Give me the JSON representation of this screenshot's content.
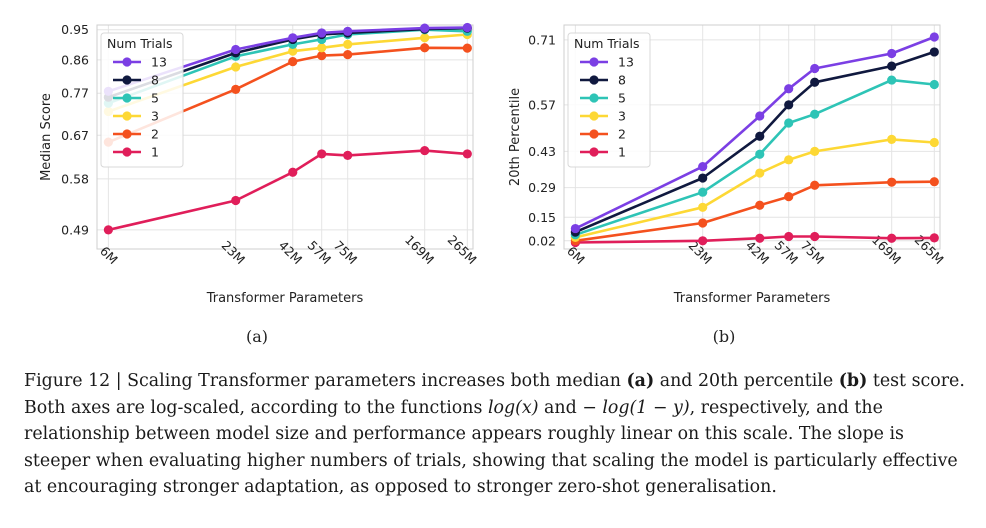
{
  "chart_data": [
    {
      "type": "line",
      "panel_label": "(a)",
      "xlabel": "Transformer Parameters",
      "ylabel": "Median Score",
      "x_scale": "log",
      "y_scale": "log",
      "x": [
        6,
        23,
        42,
        57,
        75,
        169,
        265
      ],
      "x_tick_labels": [
        "6M",
        "23M",
        "42M",
        "57M",
        "75M",
        "169M",
        "265M"
      ],
      "y_ticks": [
        0.49,
        0.58,
        0.67,
        0.77,
        0.86,
        0.95
      ],
      "y_tick_labels": [
        "0.49",
        "0.58",
        "0.67",
        "0.77",
        "0.86",
        "0.95"
      ],
      "ylim": [
        0.46,
        0.965
      ],
      "grid": true,
      "legend": {
        "title": "Num Trials",
        "position": "top-left"
      },
      "series": [
        {
          "name": "13",
          "color": "#7b3fe4",
          "values": [
            0.775,
            0.89,
            0.925,
            0.94,
            0.945,
            0.955,
            0.957
          ]
        },
        {
          "name": "8",
          "color": "#10193f",
          "values": [
            0.76,
            0.88,
            0.92,
            0.935,
            0.94,
            0.952,
            0.955
          ]
        },
        {
          "name": "5",
          "color": "#2ec4b6",
          "values": [
            0.745,
            0.87,
            0.905,
            0.92,
            0.935,
            0.95,
            0.945
          ]
        },
        {
          "name": "3",
          "color": "#fdd835",
          "values": [
            0.725,
            0.84,
            0.885,
            0.895,
            0.905,
            0.925,
            0.935
          ]
        },
        {
          "name": "2",
          "color": "#f4511e",
          "values": [
            0.655,
            0.78,
            0.855,
            0.872,
            0.875,
            0.895,
            0.894
          ]
        },
        {
          "name": "1",
          "color": "#e01e5a",
          "values": [
            0.49,
            0.54,
            0.593,
            0.63,
            0.627,
            0.637,
            0.63
          ]
        }
      ]
    },
    {
      "type": "line",
      "panel_label": "(b)",
      "xlabel": "Transformer Parameters",
      "ylabel": "20th Percentile",
      "x_scale": "log",
      "y_scale": "reciprocal",
      "x": [
        6,
        23,
        42,
        57,
        75,
        169,
        265
      ],
      "x_tick_labels": [
        "6M",
        "23M",
        "42M",
        "57M",
        "75M",
        "169M",
        "265M"
      ],
      "y_ticks": [
        0.02,
        0.15,
        0.29,
        0.43,
        0.57,
        0.71
      ],
      "y_tick_labels": [
        "0.02",
        "0.15",
        "0.29",
        "0.43",
        "0.57",
        "0.71"
      ],
      "ylim": [
        -0.03,
        0.735
      ],
      "grid": true,
      "legend": {
        "title": "Num Trials",
        "position": "top-left"
      },
      "series": [
        {
          "name": "13",
          "color": "#7b3fe4",
          "values": [
            0.09,
            0.375,
            0.54,
            0.61,
            0.655,
            0.685,
            0.715
          ]
        },
        {
          "name": "8",
          "color": "#10193f",
          "values": [
            0.07,
            0.33,
            0.48,
            0.57,
            0.625,
            0.66,
            0.688
          ]
        },
        {
          "name": "5",
          "color": "#2ec4b6",
          "values": [
            0.055,
            0.27,
            0.42,
            0.52,
            0.545,
            0.63,
            0.62
          ]
        },
        {
          "name": "3",
          "color": "#fdd835",
          "values": [
            0.04,
            0.2,
            0.35,
            0.4,
            0.43,
            0.47,
            0.46
          ]
        },
        {
          "name": "2",
          "color": "#f4511e",
          "values": [
            0.02,
            0.12,
            0.21,
            0.25,
            0.3,
            0.313,
            0.315
          ]
        },
        {
          "name": "1",
          "color": "#e01e5a",
          "values": [
            0.01,
            0.02,
            0.035,
            0.045,
            0.045,
            0.035,
            0.037
          ]
        }
      ]
    }
  ],
  "caption": {
    "figure_label": "Figure 12 | Scaling Transformer parameters increases both median ",
    "a_ref": "(a)",
    "mid1": " and 20th percentile ",
    "b_ref": "(b)",
    "mid2": " test score. Both axes are log-scaled, according to the functions ",
    "fn1": "log(x)",
    "mid3": " and ",
    "fn2": "− log(1 − y)",
    "rest": ", respectively, and the relationship between model size and performance appears roughly linear on this scale. The slope is steeper when evaluating higher numbers of trials, showing that scaling the model is particularly effective at encouraging stronger adaptation, as opposed to stronger zero-shot generalisation."
  }
}
